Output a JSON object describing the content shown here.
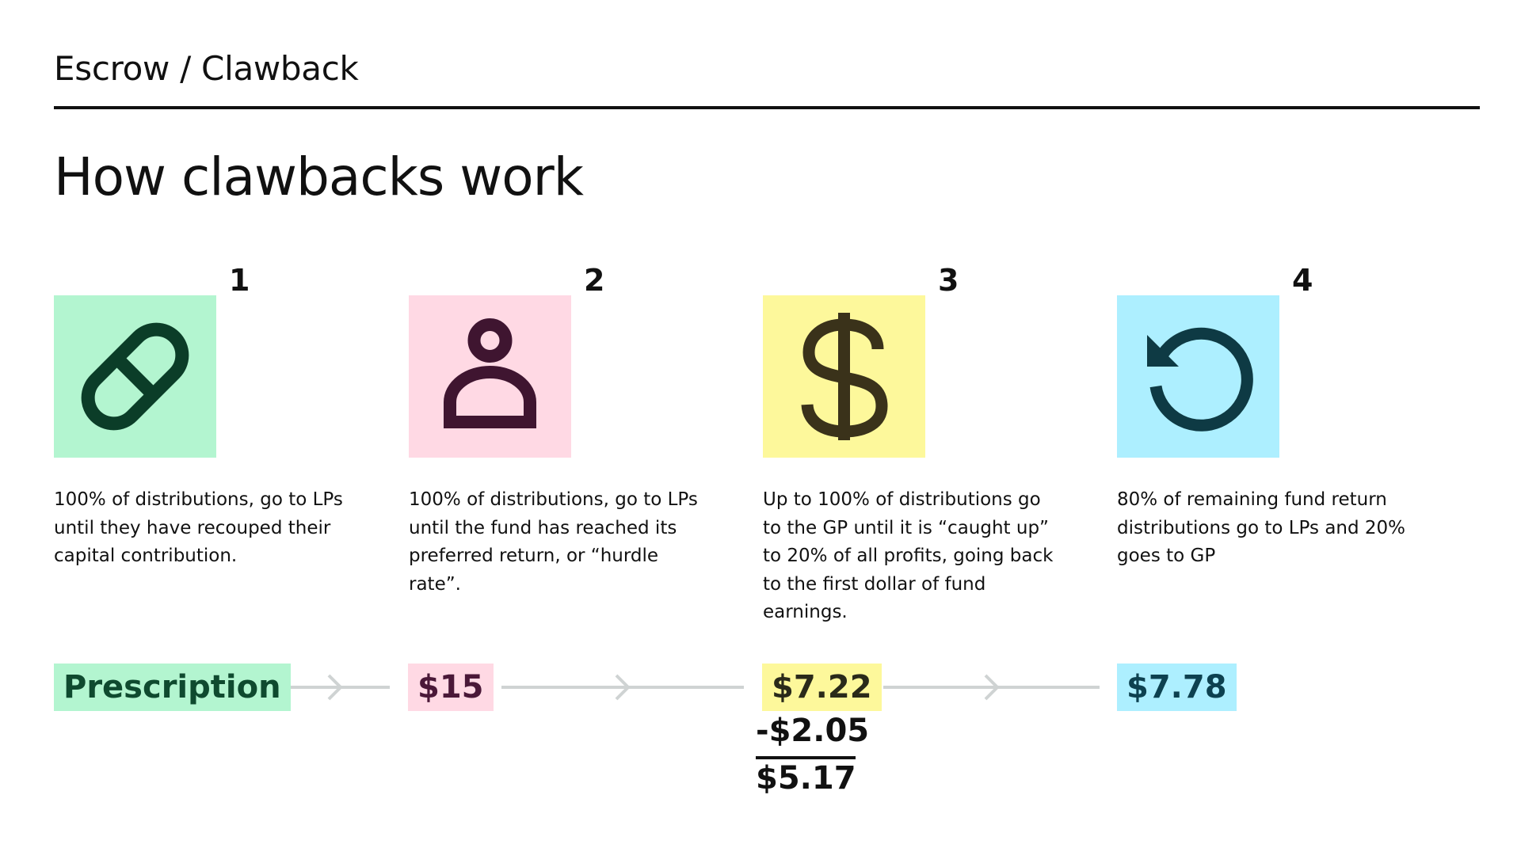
{
  "header": {
    "breadcrumb": "Escrow / Clawback",
    "title": "How clawbacks work"
  },
  "steps": [
    {
      "number": "1",
      "icon": "pill-icon",
      "color": "#b3f5d0",
      "icon_color": "#0b3d28",
      "description": "100% of distributions, go to LPs until they have recouped their capital contribution.",
      "value": "Prescription",
      "value_color": "#0f4a2f"
    },
    {
      "number": "2",
      "icon": "person-icon",
      "color": "#ffd9e4",
      "icon_color": "#3f1530",
      "description": "100% of distributions, go to LPs until the fund has reached its preferred return, or “hurdle rate”.",
      "value": "$15",
      "value_color": "#4a1838"
    },
    {
      "number": "3",
      "icon": "dollar-icon",
      "color": "#fdf89b",
      "icon_color": "#3a321a",
      "description": "Up to 100% of  distributions go to the GP until it is “caught up” to 20% of all profits, going back to the first dollar of fund earnings.",
      "value": "$7.22",
      "value_color": "#2a2a1a"
    },
    {
      "number": "4",
      "icon": "refresh-icon",
      "color": "#adefff",
      "icon_color": "#0e3a44",
      "description": "80% of remaining fund return distributions go to LPs and 20% goes to GP",
      "value": "$7.78",
      "value_color": "#0d4150"
    }
  ],
  "calculation": {
    "subtract": "-$2.05",
    "result": "$5.17"
  },
  "connector_color": "#cfd3d3"
}
